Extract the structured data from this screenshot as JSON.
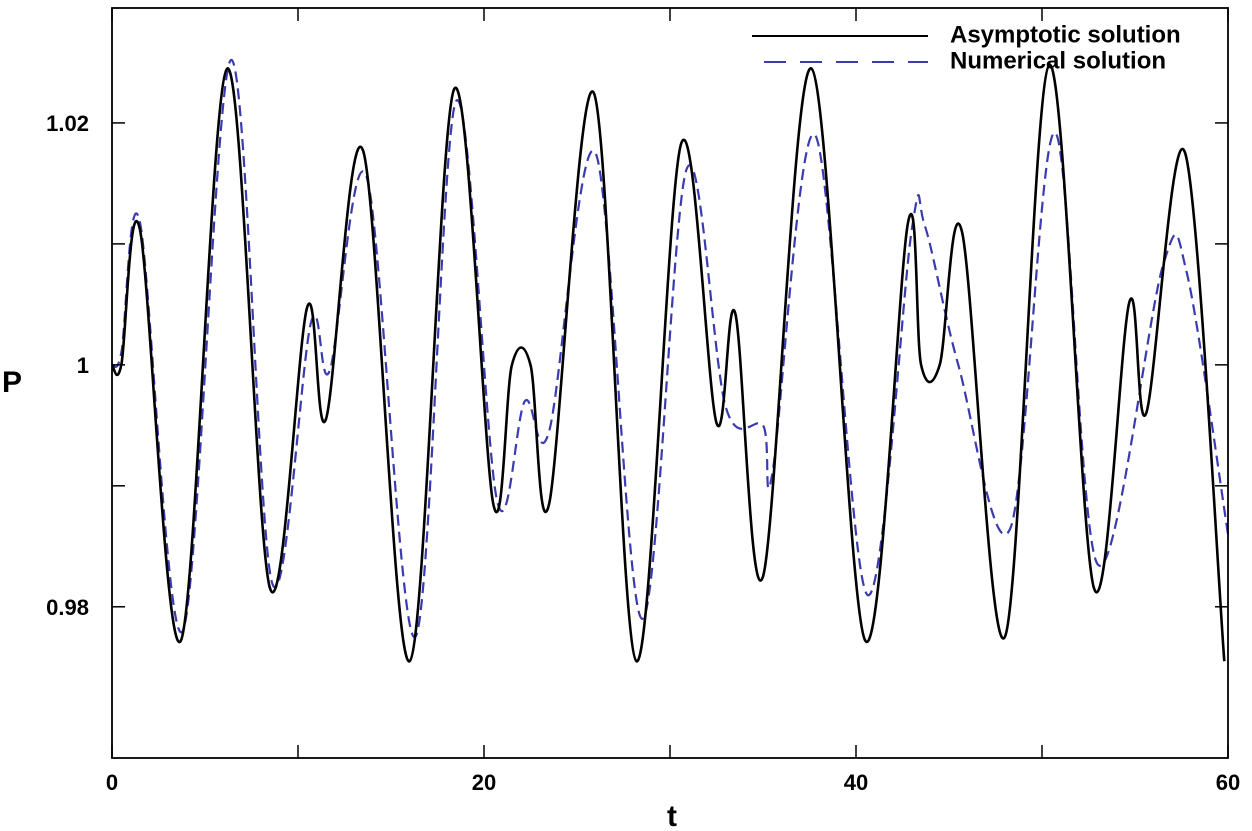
{
  "chart_data": {
    "type": "line",
    "title": "",
    "xlabel": "t",
    "ylabel": "P",
    "xlim": [
      0,
      60
    ],
    "ylim": [
      0.9675,
      1.0295
    ],
    "x_ticks": [
      0,
      20,
      40,
      60
    ],
    "x_minor_ticks": [
      10,
      30,
      50
    ],
    "y_ticks": [
      0.98,
      1,
      1.02
    ],
    "y_tick_labels": [
      "0.98",
      "1",
      "1.02"
    ],
    "y_minor_ticks": [
      0.99,
      1.01
    ],
    "grid": false,
    "legend": "top-right",
    "series": [
      {
        "name": "Asymptotic solution",
        "color": "#000000",
        "style": "solid",
        "points": [
          [
            0,
            1.0
          ],
          [
            0.5,
            1.0
          ],
          [
            1.5,
            1.0112
          ],
          [
            3.7,
            0.9772
          ],
          [
            6.2,
            1.0245
          ],
          [
            8.5,
            0.9815
          ],
          [
            10.5,
            1.0048
          ],
          [
            11.5,
            0.9955
          ],
          [
            13.5,
            1.0177
          ],
          [
            16,
            0.9755
          ],
          [
            18.4,
            1.0228
          ],
          [
            20.5,
            0.9885
          ],
          [
            21.5,
            1.0
          ],
          [
            22.5,
            1.0
          ],
          [
            23.5,
            0.9885
          ],
          [
            25.9,
            1.0225
          ],
          [
            28.2,
            0.9755
          ],
          [
            30.6,
            1.0183
          ],
          [
            32.5,
            0.9952
          ],
          [
            33.5,
            1.0043
          ],
          [
            35,
            0.9825
          ],
          [
            37.6,
            1.0245
          ],
          [
            40.5,
            0.9772
          ],
          [
            42.8,
            1.0118
          ],
          [
            43.5,
            1.0
          ],
          [
            44.5,
            1.0
          ],
          [
            45.7,
            1.011
          ],
          [
            48,
            0.9775
          ],
          [
            50.4,
            1.0248
          ],
          [
            52.8,
            0.9815
          ],
          [
            54.7,
            1.0052
          ],
          [
            55.6,
            0.996
          ],
          [
            57.7,
            1.0175
          ],
          [
            59.8,
            0.9755
          ]
        ]
      },
      {
        "name": "Numerical solution",
        "color": "#3b3bb0",
        "style": "dashed",
        "points": [
          [
            0,
            1.0
          ],
          [
            0.5,
            1.001
          ],
          [
            1.5,
            1.0118
          ],
          [
            3.8,
            0.978
          ],
          [
            6.4,
            1.0252
          ],
          [
            8.6,
            0.982
          ],
          [
            10.7,
            1.0035
          ],
          [
            11.7,
            0.9995
          ],
          [
            13.7,
            1.0155
          ],
          [
            16.3,
            0.9775
          ],
          [
            18.5,
            1.0218
          ],
          [
            20.7,
            0.9888
          ],
          [
            22.2,
            0.997
          ],
          [
            23.5,
            0.9945
          ],
          [
            26,
            1.0175
          ],
          [
            28.5,
            0.979
          ],
          [
            30.9,
            1.0162
          ],
          [
            33,
            0.9965
          ],
          [
            35,
            0.995
          ],
          [
            35.5,
            0.991
          ],
          [
            37.8,
            1.019
          ],
          [
            40.6,
            0.981
          ],
          [
            43,
            1.0112
          ],
          [
            43.7,
            1.0115
          ],
          [
            45.5,
            1.0
          ],
          [
            48.3,
            0.9865
          ],
          [
            50.7,
            1.0192
          ],
          [
            53,
            0.9835
          ],
          [
            56.5,
            1.0082
          ],
          [
            57.8,
            1.0075
          ],
          [
            60,
            0.986
          ]
        ]
      }
    ]
  }
}
